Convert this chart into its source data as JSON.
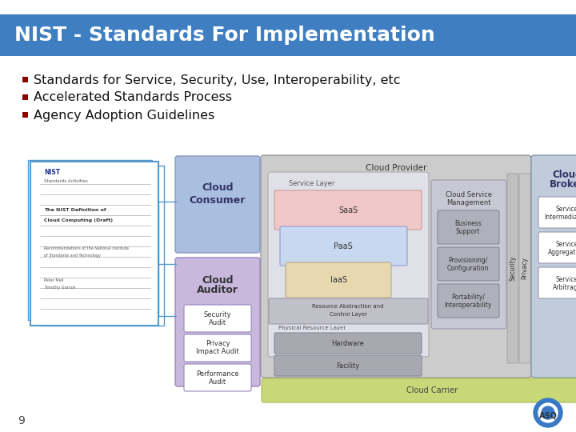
{
  "title": "NIST - Standards For Implementation",
  "title_bg_color": "#3E7EC1",
  "title_text_color": "#FFFFFF",
  "title_font_size": 18,
  "bullet_color": "#8B0000",
  "bullet_items": [
    "Standards for Service, Security, Use, Interoperability, etc",
    "Accelerated Standards Process",
    "Agency Adoption Guidelines"
  ],
  "bullet_font_size": 11.5,
  "bg_color": "#FFFFFF",
  "page_number": "9"
}
